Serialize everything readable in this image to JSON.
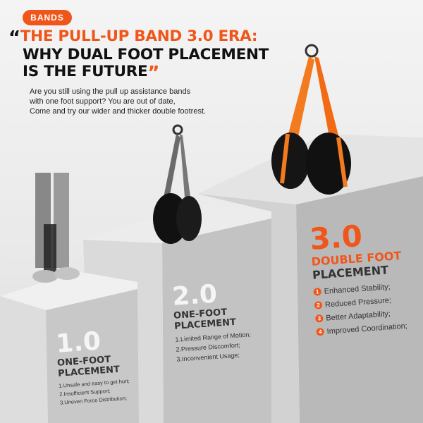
{
  "badge": "BANDS",
  "title": {
    "open_quote": "“",
    "line1": "THE PULL-UP BAND 3.0 ERA:",
    "line2": "WHY DUAL FOOT PLACEMENT",
    "line3": "IS THE FUTURE",
    "close_quote": "”"
  },
  "intro": [
    "Are you still using the pull up assistance bands",
    "with one foot support? You are out of date,",
    "Come and try our wider and thicker double footrest."
  ],
  "colors": {
    "accent": "#f0561a",
    "text": "#111111"
  },
  "v1": {
    "version": "1.0",
    "title1": "ONE-FOOT",
    "title2": "PLACEMENT",
    "items": [
      "1.Unsafe and easy to get hurt;",
      "2.Insufficient Support;",
      "3.Uneven Force Distribution;"
    ]
  },
  "v2": {
    "version": "2.0",
    "title1": "ONE-FOOT",
    "title2": "PLACEMENT",
    "items": [
      "1.Limited Range of Motion;",
      "2.Pressure Discomfort;",
      "3.Inconvenient Usage;"
    ]
  },
  "v3": {
    "version": "3.0",
    "title1": "DOUBLE FOOT",
    "title2": "PLACEMENT",
    "items": [
      {
        "n": "1",
        "text": "Enhanced Stability;"
      },
      {
        "n": "2",
        "text": "Reduced Pressure;"
      },
      {
        "n": "3",
        "text": "Better Adaptability;"
      },
      {
        "n": "4",
        "text": "Improved Coordination;"
      }
    ]
  }
}
